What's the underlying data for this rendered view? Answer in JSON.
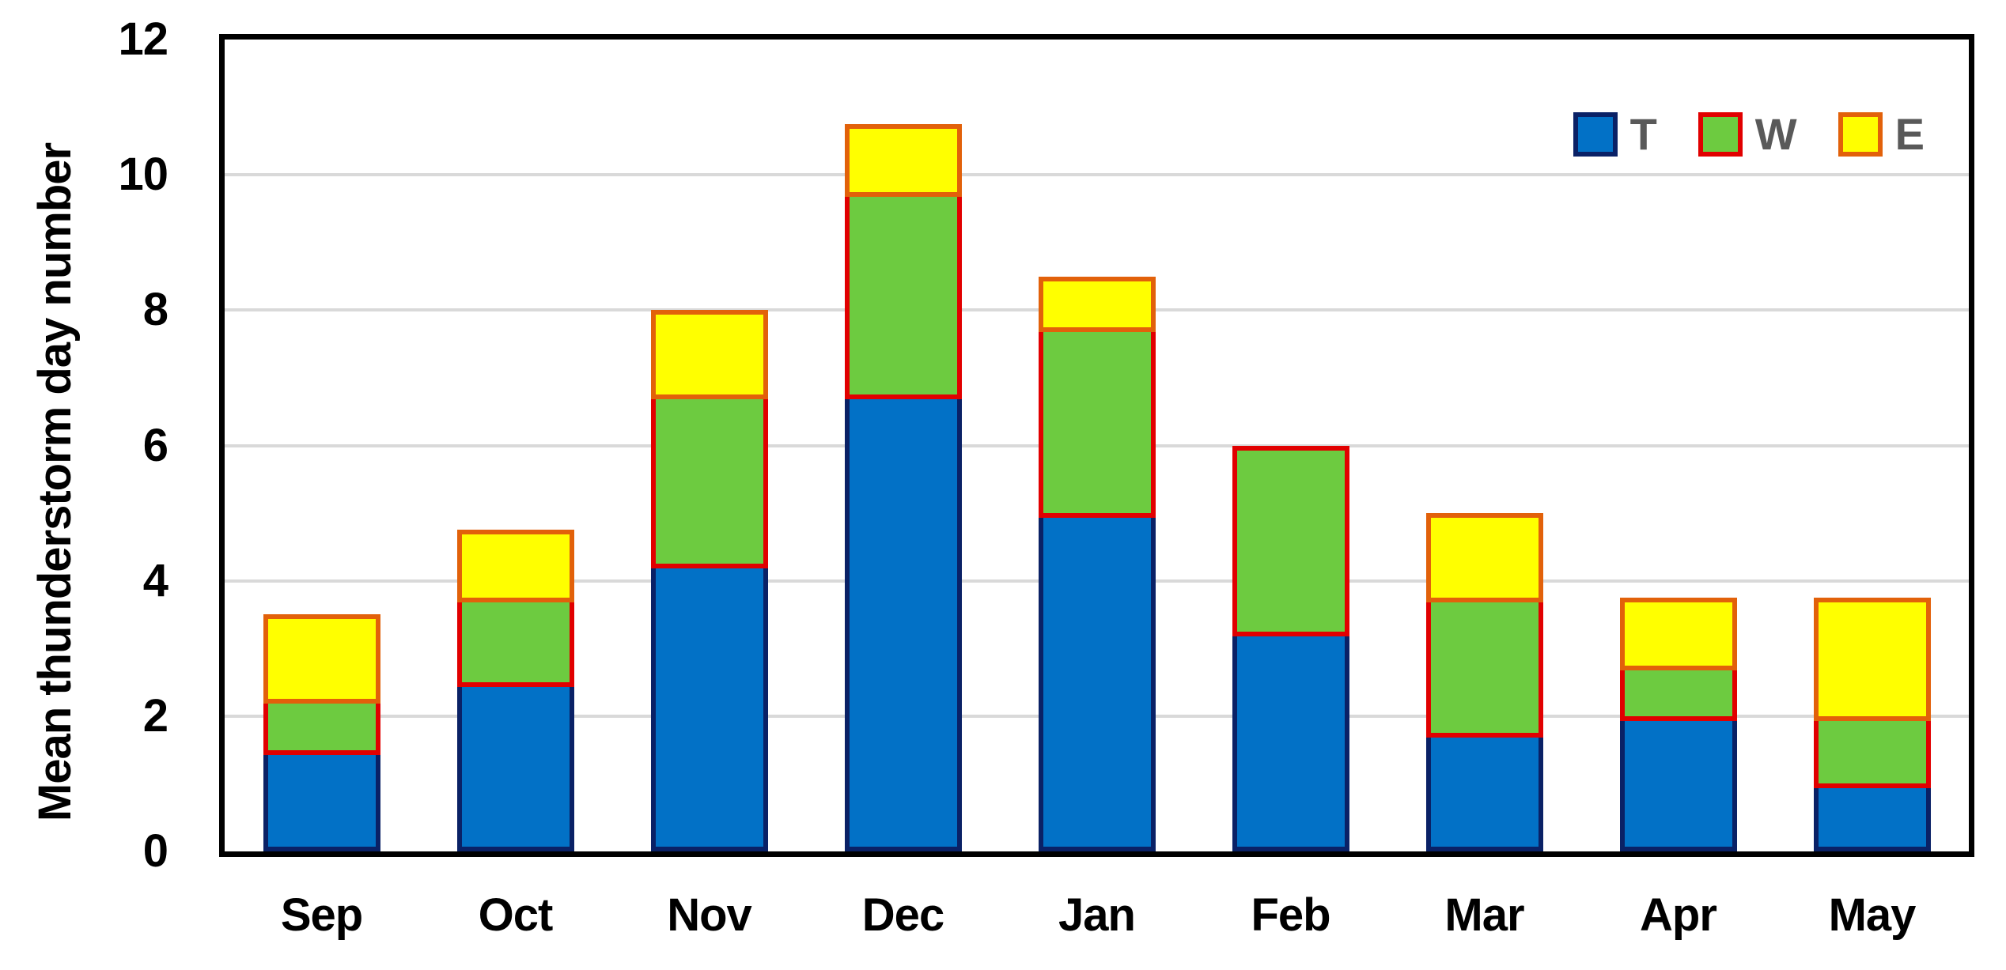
{
  "chart_data": {
    "type": "bar",
    "stacked": true,
    "title": "",
    "xlabel": "",
    "ylabel": "Mean thunderstorm day number",
    "ylim": [
      0,
      12
    ],
    "ytick_step": 2,
    "yticks": [
      0,
      2,
      4,
      6,
      8,
      10,
      12
    ],
    "grid": true,
    "legend_position": "top-right",
    "categories": [
      "Sep",
      "Oct",
      "Nov",
      "Dec",
      "Jan",
      "Feb",
      "Mar",
      "Apr",
      "May"
    ],
    "series": [
      {
        "name": "T",
        "fill": "#0271C6",
        "border": "#0A2166",
        "values": [
          1.5,
          2.5,
          4.25,
          6.75,
          5.0,
          3.25,
          1.75,
          2.0,
          1.0
        ]
      },
      {
        "name": "W",
        "fill": "#6DCB40",
        "border": "#E10000",
        "values": [
          0.75,
          1.25,
          2.5,
          3.0,
          2.75,
          2.75,
          2.0,
          0.75,
          1.0
        ]
      },
      {
        "name": "E",
        "fill": "#FFFF00",
        "border": "#E2610A",
        "values": [
          1.25,
          1.0,
          1.25,
          1.0,
          0.75,
          0.0,
          1.25,
          1.0,
          1.75
        ]
      }
    ],
    "totals": [
      3.5,
      4.75,
      8.0,
      10.75,
      8.5,
      6.0,
      5.0,
      3.75,
      3.75
    ]
  },
  "colors": {
    "background": "#FFFFFF",
    "plot_border": "#000000",
    "gridline": "#D9D9D9",
    "tick_text": "#000000",
    "legend_text": "#595959"
  }
}
